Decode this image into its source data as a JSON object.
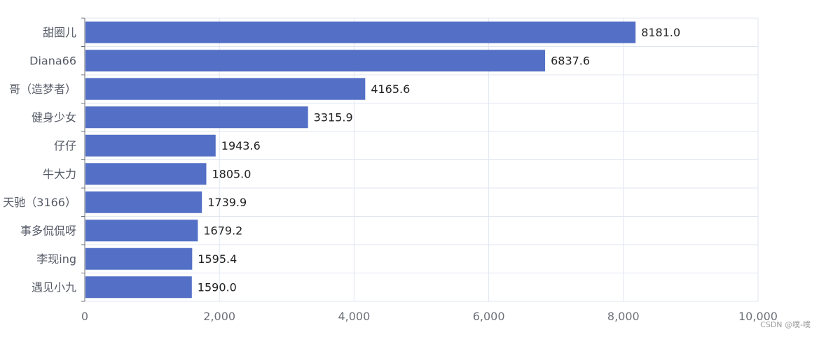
{
  "chart_data": {
    "type": "bar",
    "orientation": "horizontal",
    "categories": [
      "甜圈儿",
      "Diana66",
      "哥（造梦者）",
      "健身少女",
      "仔仔",
      "牛大力",
      "天驰（3166）",
      "事多侃侃呀",
      "李现ing",
      "遇见小九"
    ],
    "values": [
      8181.0,
      6837.6,
      4165.6,
      3315.9,
      1943.6,
      1805.0,
      1739.9,
      1679.2,
      1595.4,
      1590.0
    ],
    "data_labels": [
      "8181.0",
      "6837.6",
      "4165.6",
      "3315.9",
      "1943.6",
      "1805.0",
      "1739.9",
      "1679.2",
      "1595.4",
      "1590.0"
    ],
    "x_ticks": [
      "0",
      "2,000",
      "4,000",
      "6,000",
      "8,000",
      "10,000"
    ],
    "xlim": [
      0,
      10000
    ],
    "grid": true,
    "bar_color": "#5470c6"
  },
  "watermark": "CSDN @噗-噗"
}
